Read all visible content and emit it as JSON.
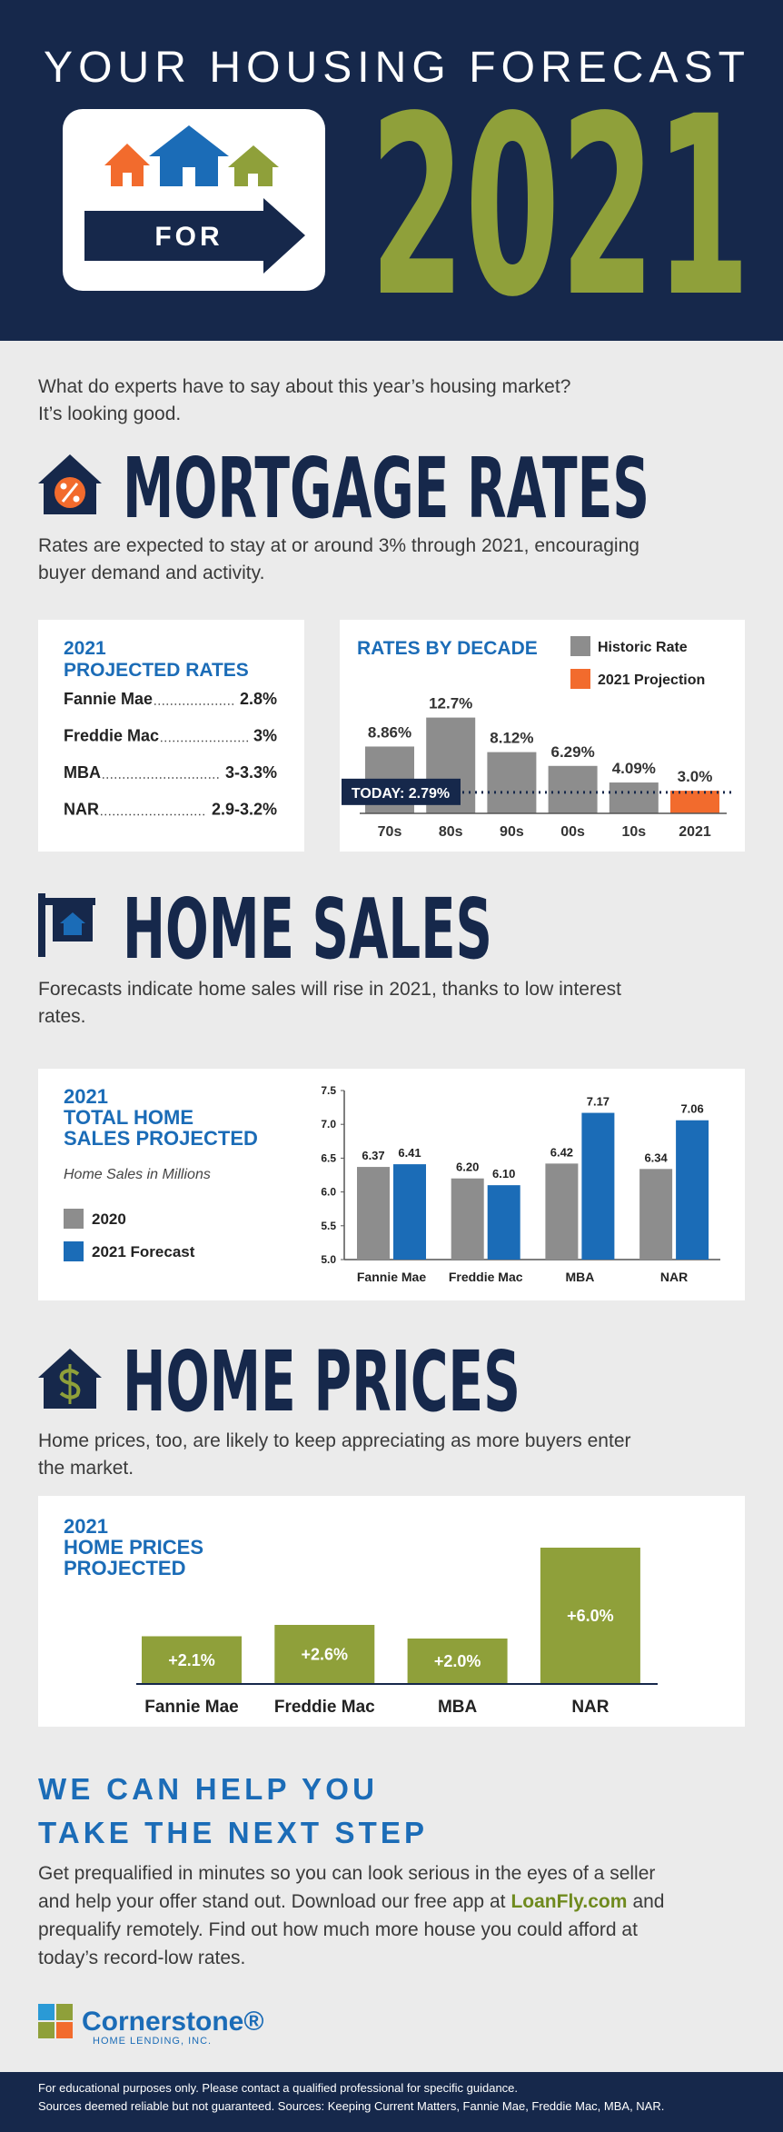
{
  "header": {
    "title": "YOUR HOUSING FORECAST",
    "badge": "FOR",
    "year": "2021"
  },
  "intro": [
    "What do experts have to say about this year’s housing market?",
    "It’s looking good."
  ],
  "mortgage_rates": {
    "heading": "MORTGAGE RATES",
    "text": [
      "Rates are expected to stay at or around 3% through 2021, encouraging",
      "buyer demand and activity."
    ],
    "projected": {
      "title": [
        "2021",
        "PROJECTED RATES"
      ],
      "rows": [
        {
          "source": "Fannie Mae",
          "rate": "2.8%"
        },
        {
          "source": "Freddie Mac",
          "rate": "3%"
        },
        {
          "source": "MBA",
          "rate": "3-3.3%"
        },
        {
          "source": "NAR",
          "rate": "2.9-3.2%"
        }
      ]
    }
  },
  "home_sales": {
    "heading": "HOME SALES",
    "text": [
      "Forecasts indicate home sales will rise in 2021, thanks to low interest",
      "rates."
    ]
  },
  "home_prices": {
    "heading": "HOME PRICES",
    "text": [
      "Home prices, too, are likely to keep appreciating as more buyers enter",
      "the market."
    ]
  },
  "chart_data": [
    {
      "type": "bar",
      "title": "RATES BY DECADE",
      "categories": [
        "70s",
        "80s",
        "90s",
        "00s",
        "10s",
        "2021"
      ],
      "values": [
        8.86,
        12.7,
        8.12,
        6.29,
        4.09,
        3.0
      ],
      "value_labels": [
        "8.86%",
        "12.7%",
        "8.12%",
        "6.29%",
        "4.09%",
        "3.0%"
      ],
      "colors": [
        "#8d8d8d",
        "#8d8d8d",
        "#8d8d8d",
        "#8d8d8d",
        "#8d8d8d",
        "#f26b2d"
      ],
      "legend": [
        {
          "name": "Historic Rate",
          "color": "#8d8d8d"
        },
        {
          "name": "2021 Projection",
          "color": "#f26b2d"
        }
      ],
      "reference_line": {
        "value": 2.79,
        "label": "TODAY: 2.79%"
      }
    },
    {
      "type": "grouped_bar",
      "title": [
        "2021",
        "TOTAL HOME",
        "SALES PROJECTED"
      ],
      "subtitle": "Home Sales in Millions",
      "categories": [
        "Fannie Mae",
        "Freddie Mac",
        "MBA",
        "NAR"
      ],
      "series": [
        {
          "name": "2020",
          "color": "#8d8d8d",
          "values": [
            6.37,
            6.2,
            6.42,
            6.34
          ],
          "value_labels": [
            "6.37",
            "6.20",
            "6.42",
            "6.34"
          ]
        },
        {
          "name": "2021 Forecast",
          "color": "#1b6cb7",
          "values": [
            6.41,
            6.1,
            7.17,
            7.06
          ],
          "value_labels": [
            "6.41",
            "6.10",
            "7.17",
            "7.06"
          ]
        }
      ],
      "ylim": [
        5,
        7.5
      ],
      "yticks": [
        {
          "value": 5,
          "label": "5.0"
        },
        5.5,
        {
          "value": 6,
          "label": "6.0"
        },
        6.5,
        {
          "value": 7,
          "label": "7.0"
        },
        7.5
      ]
    },
    {
      "type": "bar",
      "title": [
        "2021",
        "HOME PRICES",
        "PROJECTED"
      ],
      "categories": [
        "Fannie Mae",
        "Freddie Mac",
        "MBA",
        "NAR"
      ],
      "values": [
        2.1,
        2.6,
        2.0,
        6.0
      ],
      "value_labels": [
        "+2.1%",
        "+2.6%",
        "+2.0%",
        "+6.0%"
      ],
      "color": "#8fa03a"
    }
  ],
  "help": {
    "heading": [
      "WE CAN HELP YOU",
      "TAKE THE NEXT STEP"
    ],
    "text": [
      "Get prequalified in minutes so you can look serious in the eyes of a seller",
      [
        "and help your offer stand out. Download our free app at",
        "LoanFly.com",
        "and"
      ],
      "prequalify remotely. Find out how much more house you could afford at",
      "today’s record-low rates."
    ]
  },
  "logo": {
    "name": "Cornerstone®",
    "tagline": "HOME LENDING, INC."
  },
  "footer": [
    "For educational purposes only. Please contact a qualified professional for specific guidance.",
    "Sources deemed reliable but not guaranteed. Sources: Keeping Current Matters, Fannie Mae, Freddie Mac, MBA, NAR."
  ]
}
